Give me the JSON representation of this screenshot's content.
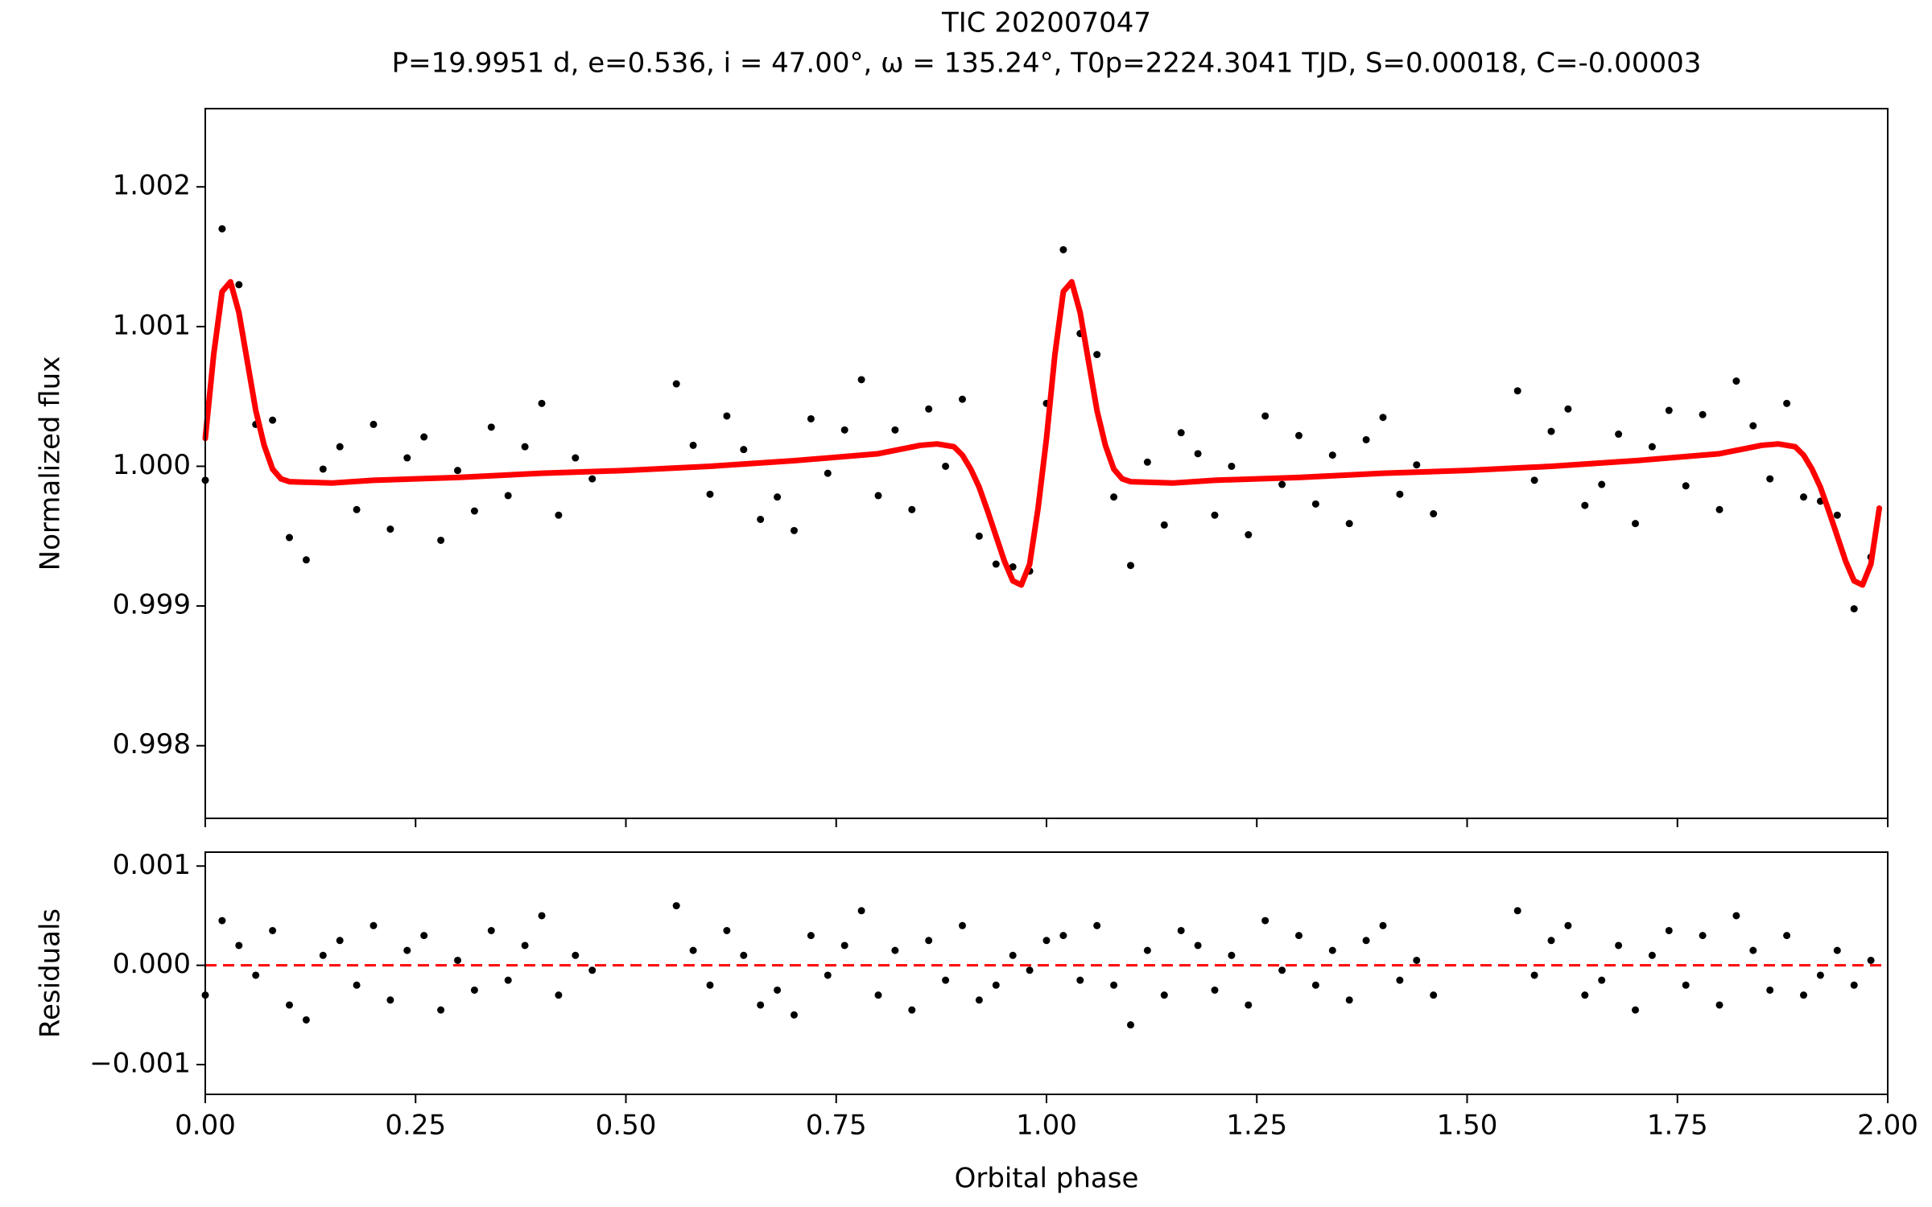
{
  "chart_data": [
    {
      "type": "scatter",
      "title": "TIC 202007047",
      "subtitle": "P=19.9951 d, e=0.536, i = 47.00°, ω = 135.24°, T0p=2224.3041 TJD, S=0.00018, C=-0.00003",
      "ylabel": "Normalized flux",
      "xlim": [
        0,
        2
      ],
      "xticks": [
        0,
        0.25,
        0.5,
        0.75,
        1,
        1.25,
        1.5,
        1.75,
        2
      ],
      "ylim": [
        0.99748,
        1.00256
      ],
      "yticks": [
        0.998,
        0.999,
        {
          "value": 1,
          "label": "1.000"
        },
        1.001,
        1.002
      ],
      "points": {
        "color": "#000000",
        "x": [
          0,
          0.02,
          0.04,
          0.06,
          0.08,
          0.1,
          0.12,
          0.14,
          0.16,
          0.18,
          0.2,
          0.22,
          0.24,
          0.26,
          0.28,
          0.3,
          0.32,
          0.34,
          0.36,
          0.38,
          0.4,
          0.42,
          0.44,
          0.46,
          0.56,
          0.58,
          0.6,
          0.62,
          0.64,
          0.66,
          0.68,
          0.7,
          0.72,
          0.74,
          0.76,
          0.78,
          0.8,
          0.82,
          0.84,
          0.86,
          0.88,
          0.9,
          0.92,
          0.94,
          0.96,
          0.98,
          1,
          1.02,
          1.04,
          1.06,
          1.08,
          1.1,
          1.12,
          1.14,
          1.16,
          1.18,
          1.2,
          1.22,
          1.24,
          1.26,
          1.28,
          1.3,
          1.32,
          1.34,
          1.36,
          1.38,
          1.4,
          1.42,
          1.44,
          1.46,
          1.56,
          1.58,
          1.6,
          1.62,
          1.64,
          1.66,
          1.68,
          1.7,
          1.72,
          1.74,
          1.76,
          1.78,
          1.8,
          1.82,
          1.84,
          1.86,
          1.88,
          1.9,
          1.92,
          1.94,
          1.96,
          1.98
        ],
        "values": [
          0.9999,
          1.0017,
          1.0013,
          1.0003,
          1.00033,
          0.99949,
          0.99933,
          0.99998,
          1.00014,
          0.99969,
          1.0003,
          0.99955,
          1.00006,
          1.00021,
          0.99947,
          0.99997,
          0.99968,
          1.00028,
          0.99979,
          1.00014,
          1.00045,
          0.99965,
          1.00006,
          0.99991,
          1.00059,
          1.00015,
          0.9998,
          1.00036,
          1.00012,
          0.99962,
          0.99978,
          0.99954,
          1.00034,
          0.99995,
          1.00026,
          1.00062,
          0.99979,
          1.00026,
          0.99969,
          1.00041,
          1.0,
          1.00048,
          0.9995,
          0.9993,
          0.99928,
          0.99925,
          1.00045,
          1.00155,
          1.00095,
          1.0008,
          0.99978,
          0.99929,
          1.00003,
          0.99958,
          1.00024,
          1.00009,
          0.99965,
          1.0,
          0.99951,
          1.00036,
          0.99987,
          1.00022,
          0.99973,
          1.00008,
          0.99959,
          1.00019,
          1.00035,
          0.9998,
          1.00001,
          0.99966,
          1.00054,
          0.9999,
          1.00025,
          1.00041,
          0.99972,
          0.99987,
          1.00023,
          0.99959,
          1.00014,
          1.0004,
          0.99986,
          1.00037,
          0.99969,
          1.00061,
          1.00029,
          0.99991,
          1.00045,
          0.99978,
          0.99975,
          0.99965,
          0.99898,
          0.99935
        ]
      },
      "model": {
        "type": "line",
        "color": "#ff0000",
        "x": [
          0,
          0.01,
          0.02,
          0.03,
          0.04,
          0.05,
          0.06,
          0.07,
          0.08,
          0.09,
          0.1,
          0.15,
          0.2,
          0.3,
          0.4,
          0.5,
          0.6,
          0.7,
          0.8,
          0.85,
          0.87,
          0.89,
          0.9,
          0.91,
          0.92,
          0.93,
          0.94,
          0.95,
          0.96,
          0.97,
          0.98,
          0.99,
          1,
          1.01,
          1.02,
          1.03,
          1.04,
          1.05,
          1.06,
          1.07,
          1.08,
          1.09,
          1.1,
          1.15,
          1.2,
          1.3,
          1.4,
          1.5,
          1.6,
          1.7,
          1.8,
          1.85,
          1.87,
          1.89,
          1.9,
          1.91,
          1.92,
          1.93,
          1.94,
          1.95,
          1.96,
          1.97,
          1.98,
          1.99
        ],
        "values": [
          1.0002,
          1.0008,
          1.00125,
          1.00132,
          1.0011,
          1.00075,
          1.0004,
          1.00015,
          0.99998,
          0.99991,
          0.99989,
          0.99988,
          0.9999,
          0.99992,
          0.99995,
          0.99997,
          1.0,
          1.00004,
          1.00009,
          1.00015,
          1.00016,
          1.00014,
          1.00008,
          0.99998,
          0.99985,
          0.99968,
          0.9995,
          0.99932,
          0.99918,
          0.99915,
          0.9993,
          0.9997,
          1.0002,
          1.0008,
          1.00125,
          1.00132,
          1.0011,
          1.00075,
          1.0004,
          1.00015,
          0.99998,
          0.99991,
          0.99989,
          0.99988,
          0.9999,
          0.99992,
          0.99995,
          0.99997,
          1.0,
          1.00004,
          1.00009,
          1.00015,
          1.00016,
          1.00014,
          1.00008,
          0.99998,
          0.99985,
          0.99968,
          0.9995,
          0.99932,
          0.99918,
          0.99915,
          0.9993,
          0.9997
        ]
      }
    },
    {
      "type": "scatter",
      "ylabel": "Residuals",
      "xlabel": "Orbital phase",
      "xlim": [
        0,
        2
      ],
      "xticks": [
        {
          "value": 0,
          "label": "0.00"
        },
        {
          "value": 0.25,
          "label": "0.25"
        },
        {
          "value": 0.5,
          "label": "0.50"
        },
        {
          "value": 0.75,
          "label": "0.75"
        },
        {
          "value": 1,
          "label": "1.00"
        },
        {
          "value": 1.25,
          "label": "1.25"
        },
        {
          "value": 1.5,
          "label": "1.50"
        },
        {
          "value": 1.75,
          "label": "1.75"
        },
        {
          "value": 2,
          "label": "2.00"
        }
      ],
      "ylim": [
        -0.0013,
        0.00114
      ],
      "yticks": [
        {
          "value": -0.001,
          "label": "−0.001"
        },
        {
          "value": 0,
          "label": "0.000"
        },
        0.001
      ],
      "reference_line": {
        "value": 0,
        "color": "#ff0000",
        "style": "dashed"
      },
      "points": {
        "color": "#000000",
        "x": [
          0,
          0.02,
          0.04,
          0.06,
          0.08,
          0.1,
          0.12,
          0.14,
          0.16,
          0.18,
          0.2,
          0.22,
          0.24,
          0.26,
          0.28,
          0.3,
          0.32,
          0.34,
          0.36,
          0.38,
          0.4,
          0.42,
          0.44,
          0.46,
          0.56,
          0.58,
          0.6,
          0.62,
          0.64,
          0.66,
          0.68,
          0.7,
          0.72,
          0.74,
          0.76,
          0.78,
          0.8,
          0.82,
          0.84,
          0.86,
          0.88,
          0.9,
          0.92,
          0.94,
          0.96,
          0.98,
          1,
          1.02,
          1.04,
          1.06,
          1.08,
          1.1,
          1.12,
          1.14,
          1.16,
          1.18,
          1.2,
          1.22,
          1.24,
          1.26,
          1.28,
          1.3,
          1.32,
          1.34,
          1.36,
          1.38,
          1.4,
          1.42,
          1.44,
          1.46,
          1.56,
          1.58,
          1.6,
          1.62,
          1.64,
          1.66,
          1.68,
          1.7,
          1.72,
          1.74,
          1.76,
          1.78,
          1.8,
          1.82,
          1.84,
          1.86,
          1.88,
          1.9,
          1.92,
          1.94,
          1.96,
          1.98
        ],
        "values": [
          -0.0003,
          0.00045,
          0.0002,
          -0.0001,
          0.00035,
          -0.0004,
          -0.00055,
          0.0001,
          0.00025,
          -0.0002,
          0.0004,
          -0.00035,
          0.00015,
          0.0003,
          -0.00045,
          5e-05,
          -0.00025,
          0.00035,
          -0.00015,
          0.0002,
          0.0005,
          -0.0003,
          0.0001,
          -5e-05,
          0.0006,
          0.00015,
          -0.0002,
          0.00035,
          0.0001,
          -0.0004,
          -0.00025,
          -0.0005,
          0.0003,
          -0.0001,
          0.0002,
          0.00055,
          -0.0003,
          0.00015,
          -0.00045,
          0.00025,
          -0.00015,
          0.0004,
          -0.00035,
          -0.0002,
          0.0001,
          -5e-05,
          0.00025,
          0.0003,
          -0.00015,
          0.0004,
          -0.0002,
          -0.0006,
          0.00015,
          -0.0003,
          0.00035,
          0.0002,
          -0.00025,
          0.0001,
          -0.0004,
          0.00045,
          -5e-05,
          0.0003,
          -0.0002,
          0.00015,
          -0.00035,
          0.00025,
          0.0004,
          -0.00015,
          5e-05,
          -0.0003,
          0.00055,
          -0.0001,
          0.00025,
          0.0004,
          -0.0003,
          -0.00015,
          0.0002,
          -0.00045,
          0.0001,
          0.00035,
          -0.0002,
          0.0003,
          -0.0004,
          0.0005,
          0.00015,
          -0.00025,
          0.0003,
          -0.0003,
          -0.0001,
          0.00015,
          -0.0002,
          5e-05
        ]
      }
    }
  ]
}
